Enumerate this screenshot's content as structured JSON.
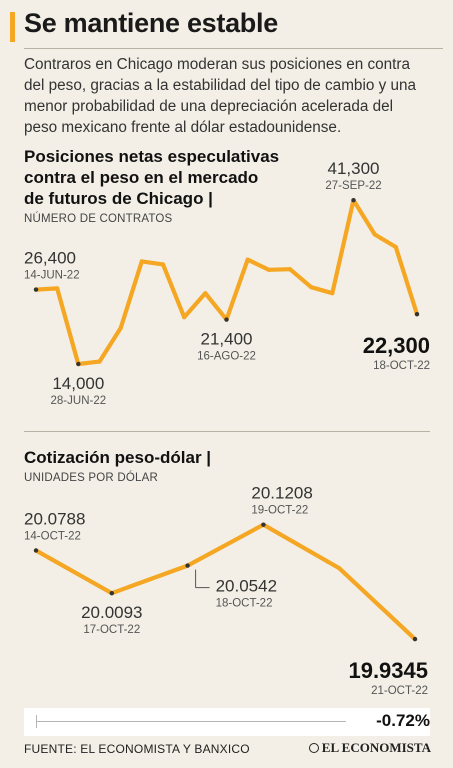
{
  "title": "Se mantiene estable",
  "intro": "Contraros en Chicago moderan sus posiciones en contra del peso, gracias a la estabilidad del tipo de cambio y una menor probabilidad de una depreciación acelerada del peso mexicano frente al dólar estadounidense.",
  "colors": {
    "line": "#f5a623",
    "accent": "#f5a623",
    "background": "#f3efe6"
  },
  "section1": {
    "title_lines": [
      "Posiciones netas especulativas",
      "contra el peso en el mercado",
      "de futuros de Chicago |"
    ],
    "subtitle": "NÚMERO DE CONTRATOS"
  },
  "section2": {
    "title": "Cotización peso-dólar |",
    "subtitle": "UNIDADES POR DÓLAR"
  },
  "footer": {
    "change": "-0.72%",
    "source": "FUENTE: EL ECONOMISTA Y BANXICO",
    "brand": "EL ECONOMISTA"
  },
  "chart_data": [
    {
      "type": "line",
      "title": "Posiciones netas especulativas contra el peso en el mercado de futuros de Chicago",
      "ylabel": "NÚMERO DE CONTRATOS",
      "ylim": [
        12000,
        43000
      ],
      "grid": false,
      "values": [
        26400,
        26600,
        14000,
        14400,
        20000,
        31100,
        30600,
        21800,
        25800,
        21400,
        31400,
        29700,
        29800,
        26800,
        25800,
        41300,
        35600,
        33500,
        22300
      ],
      "annotations": [
        {
          "index": 0,
          "value": "26,400",
          "date": "14-JUN-22",
          "pos": "above"
        },
        {
          "index": 2,
          "value": "14,000",
          "date": "28-JUN-22",
          "pos": "below"
        },
        {
          "index": 9,
          "value": "21,400",
          "date": "16-AGO-22",
          "pos": "below"
        },
        {
          "index": 15,
          "value": "41,300",
          "date": "27-SEP-22",
          "pos": "above"
        },
        {
          "index": 18,
          "value": "22,300",
          "date": "18-OCT-22",
          "pos": "final"
        }
      ]
    },
    {
      "type": "line",
      "title": "Cotización peso-dólar",
      "ylabel": "UNIDADES POR DÓLAR",
      "ylim": [
        19.92,
        20.135
      ],
      "grid": false,
      "values": [
        20.0788,
        20.0093,
        20.0542,
        20.1208,
        20.05,
        19.9345
      ],
      "annotations": [
        {
          "index": 0,
          "value": "20.0788",
          "date": "14-OCT-22",
          "pos": "above"
        },
        {
          "index": 1,
          "value": "20.0093",
          "date": "17-OCT-22",
          "pos": "below"
        },
        {
          "index": 2,
          "value": "20.0542",
          "date": "18-OCT-22",
          "pos": "right"
        },
        {
          "index": 3,
          "value": "20.1208",
          "date": "19-OCT-22",
          "pos": "above"
        },
        {
          "index": 5,
          "value": "19.9345",
          "date": "21-OCT-22",
          "pos": "final"
        }
      ]
    }
  ]
}
